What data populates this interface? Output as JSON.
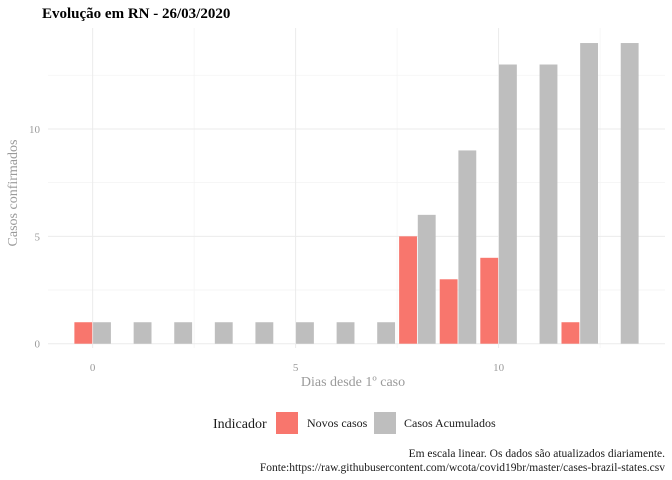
{
  "chart_data": {
    "type": "bar",
    "title": "Evolução em RN  -  26/03/2020",
    "xlabel": "Dias desde 1º caso",
    "ylabel": "Casos confirmados",
    "x": [
      0,
      1,
      2,
      3,
      4,
      5,
      6,
      7,
      8,
      9,
      10,
      11,
      12,
      13
    ],
    "series": [
      {
        "name": "Novos casos",
        "color": "#F8766D",
        "values": [
          1,
          0,
          0,
          0,
          0,
          0,
          0,
          0,
          5,
          3,
          4,
          0,
          1,
          0
        ]
      },
      {
        "name": "Casos Acumulados",
        "color": "#BEBEBE",
        "values": [
          1,
          1,
          1,
          1,
          1,
          1,
          1,
          1,
          6,
          9,
          13,
          13,
          14,
          14
        ]
      }
    ],
    "xticks": [
      0,
      5,
      10
    ],
    "yticks": [
      0,
      5,
      10
    ],
    "xlim": [
      -1.1,
      14.1
    ],
    "ylim": [
      -0.2,
      14.7
    ],
    "grid": true,
    "legend": {
      "title": "Indicador",
      "position": "bottom"
    },
    "caption": [
      "Em escala linear. Os dados são atualizados diariamente.",
      "Fonte:https://raw.githubusercontent.com/wcota/covid19br/master/cases-brazil-states.csv"
    ]
  }
}
